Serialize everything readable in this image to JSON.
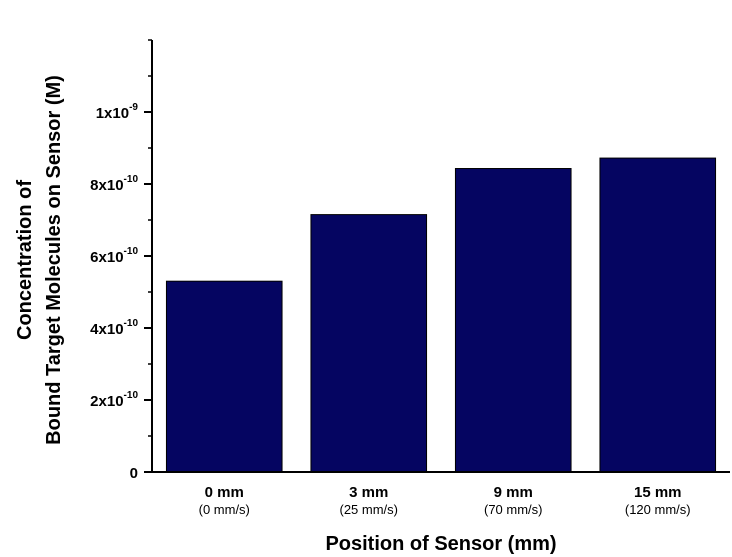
{
  "chart_data": {
    "type": "bar",
    "categories": [
      "0 mm",
      "3 mm",
      "9 mm",
      "15 mm"
    ],
    "category_sublabels": [
      "(0 mm/s)",
      "(25 mm/s)",
      "(70 mm/s)",
      "(120 mm/s)"
    ],
    "values": [
      5.3e-10,
      7.15e-10,
      8.43e-10,
      8.72e-10
    ],
    "ylim": [
      0,
      1.2e-09
    ],
    "y_ticks": [
      {
        "value": 0,
        "mantissa": "0",
        "exp": ""
      },
      {
        "value": 2e-10,
        "mantissa": "2x10",
        "exp": "-10"
      },
      {
        "value": 4e-10,
        "mantissa": "4x10",
        "exp": "-10"
      },
      {
        "value": 6e-10,
        "mantissa": "6x10",
        "exp": "-10"
      },
      {
        "value": 8e-10,
        "mantissa": "8x10",
        "exp": "-10"
      },
      {
        "value": 1e-09,
        "mantissa": "1x10",
        "exp": "-9"
      }
    ],
    "y_minor_step": 1e-10,
    "xlabel": "Position of Sensor (mm)",
    "ylabel_line1": "Concentration of",
    "ylabel_line2": "Bound Target Molecules on Sensor (M)",
    "bar_color": "#050561",
    "grid": false,
    "legend": "none"
  }
}
